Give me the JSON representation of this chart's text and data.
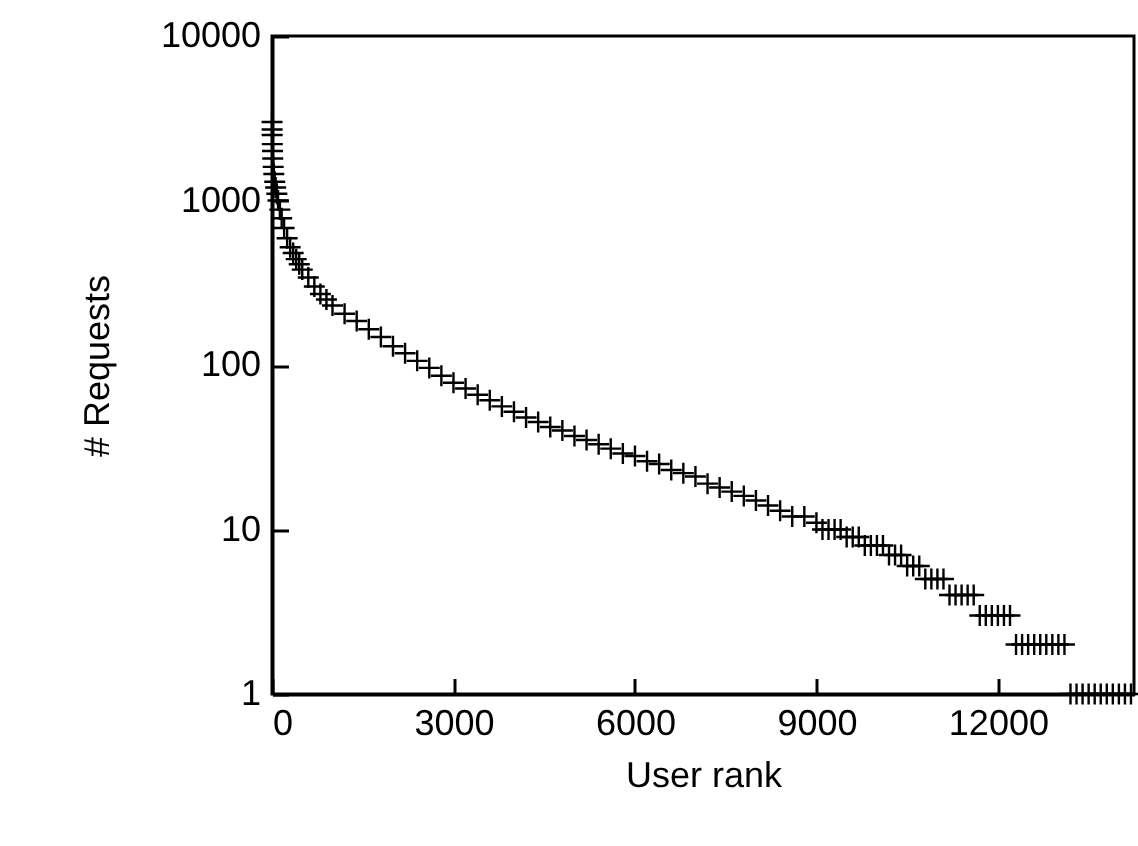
{
  "chart_data": {
    "type": "scatter",
    "xlabel": "User rank",
    "ylabel": "# Requests",
    "log": "y",
    "marker": "cross",
    "grid": false,
    "xlim": [
      0,
      14250
    ],
    "xticks": [
      0,
      3000,
      6000,
      9000,
      12000
    ],
    "ylim": [
      1,
      10000
    ],
    "yticks": [
      1,
      10,
      100,
      1000,
      10000
    ],
    "series": [
      {
        "color": "#000000",
        "x": [
          1,
          2,
          3,
          5,
          8,
          12,
          20,
          30,
          45,
          60,
          80,
          100,
          130,
          160,
          200,
          250,
          300,
          350,
          400,
          450,
          500,
          600,
          700,
          800,
          900,
          1000,
          1200,
          1400,
          1600,
          1800,
          2000,
          2200,
          2400,
          2600,
          2800,
          3000,
          3200,
          3400,
          3600,
          3800,
          4000,
          4200,
          4400,
          4600,
          4800,
          5000,
          5200,
          5400,
          5600,
          5800,
          6000,
          6200,
          6400,
          6600,
          6800,
          7000,
          7200,
          7400,
          7600,
          7800,
          8000,
          8200,
          8400,
          8600,
          8800,
          9000,
          9100,
          9200,
          9300,
          9400,
          9500,
          9600,
          9700,
          9800,
          9900,
          10000,
          10100,
          10200,
          10300,
          10400,
          10500,
          10600,
          10700,
          10800,
          10900,
          11000,
          11100,
          11200,
          11300,
          11400,
          11500,
          11600,
          11700,
          11800,
          11900,
          12000,
          12100,
          12200,
          12300,
          12400,
          12500,
          12600,
          12700,
          12800,
          12900,
          13000,
          13100,
          13200,
          13300,
          13400,
          13500,
          13600,
          13700,
          13800,
          13900,
          14000,
          14100,
          14200
        ],
        "values": [
          3000,
          2700,
          2500,
          2200,
          2000,
          1800,
          1600,
          1450,
          1300,
          1200,
          1100,
          1000,
          880,
          780,
          680,
          590,
          520,
          480,
          440,
          410,
          380,
          340,
          300,
          270,
          250,
          230,
          205,
          185,
          165,
          148,
          130,
          118,
          106,
          96,
          86,
          78,
          72,
          66,
          61,
          56,
          52,
          48,
          45,
          42,
          40,
          37,
          35,
          33,
          31,
          29,
          28,
          26,
          25,
          23,
          22,
          21,
          19,
          18,
          17,
          16,
          15,
          14,
          13,
          12,
          12,
          11,
          10,
          10,
          10,
          10,
          9,
          9,
          9,
          8,
          8,
          8,
          8,
          7,
          7,
          7,
          6,
          6,
          6,
          5,
          5,
          5,
          5,
          4,
          4,
          4,
          4,
          4,
          3,
          3,
          3,
          3,
          3,
          3,
          2,
          2,
          2,
          2,
          2,
          2,
          2,
          2,
          2,
          1,
          1,
          1,
          1,
          1,
          1,
          1,
          1,
          1,
          1,
          1
        ]
      }
    ]
  }
}
